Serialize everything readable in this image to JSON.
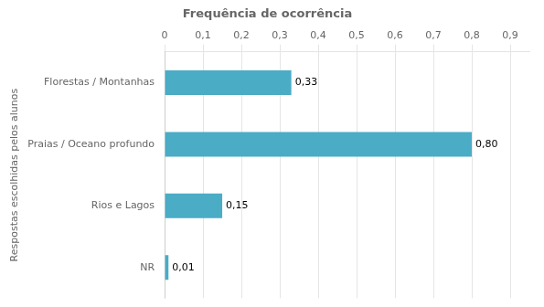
{
  "chart_data": {
    "type": "bar",
    "orientation": "horizontal",
    "title": "Frequência de ocorrência",
    "ylabel": "Respostas escolhidas pelos alunos",
    "categories": [
      "NR",
      "Rios e Lagos",
      "Praias / Oceano profundo",
      "Florestas / Montanhas"
    ],
    "values": [
      0.01,
      0.15,
      0.8,
      0.33
    ],
    "value_labels": [
      "0,01",
      "0,15",
      "0,80",
      "0,33"
    ],
    "data_labels": true,
    "color": "#4BACC6",
    "xlim": [
      0,
      0.95
    ],
    "xticks": [
      0,
      {
        "value": 0.1,
        "label": "0,1"
      },
      {
        "value": 0.2,
        "label": "0,2"
      },
      {
        "value": 0.3,
        "label": "0,3"
      },
      {
        "value": 0.4,
        "label": "0,4"
      },
      {
        "value": 0.5,
        "label": "0,5"
      },
      {
        "value": 0.6,
        "label": "0,6"
      },
      {
        "value": 0.7,
        "label": "0,7"
      },
      {
        "value": 0.8,
        "label": "0,8"
      },
      {
        "value": 0.9,
        "label": "0,9"
      }
    ],
    "grid": true
  }
}
